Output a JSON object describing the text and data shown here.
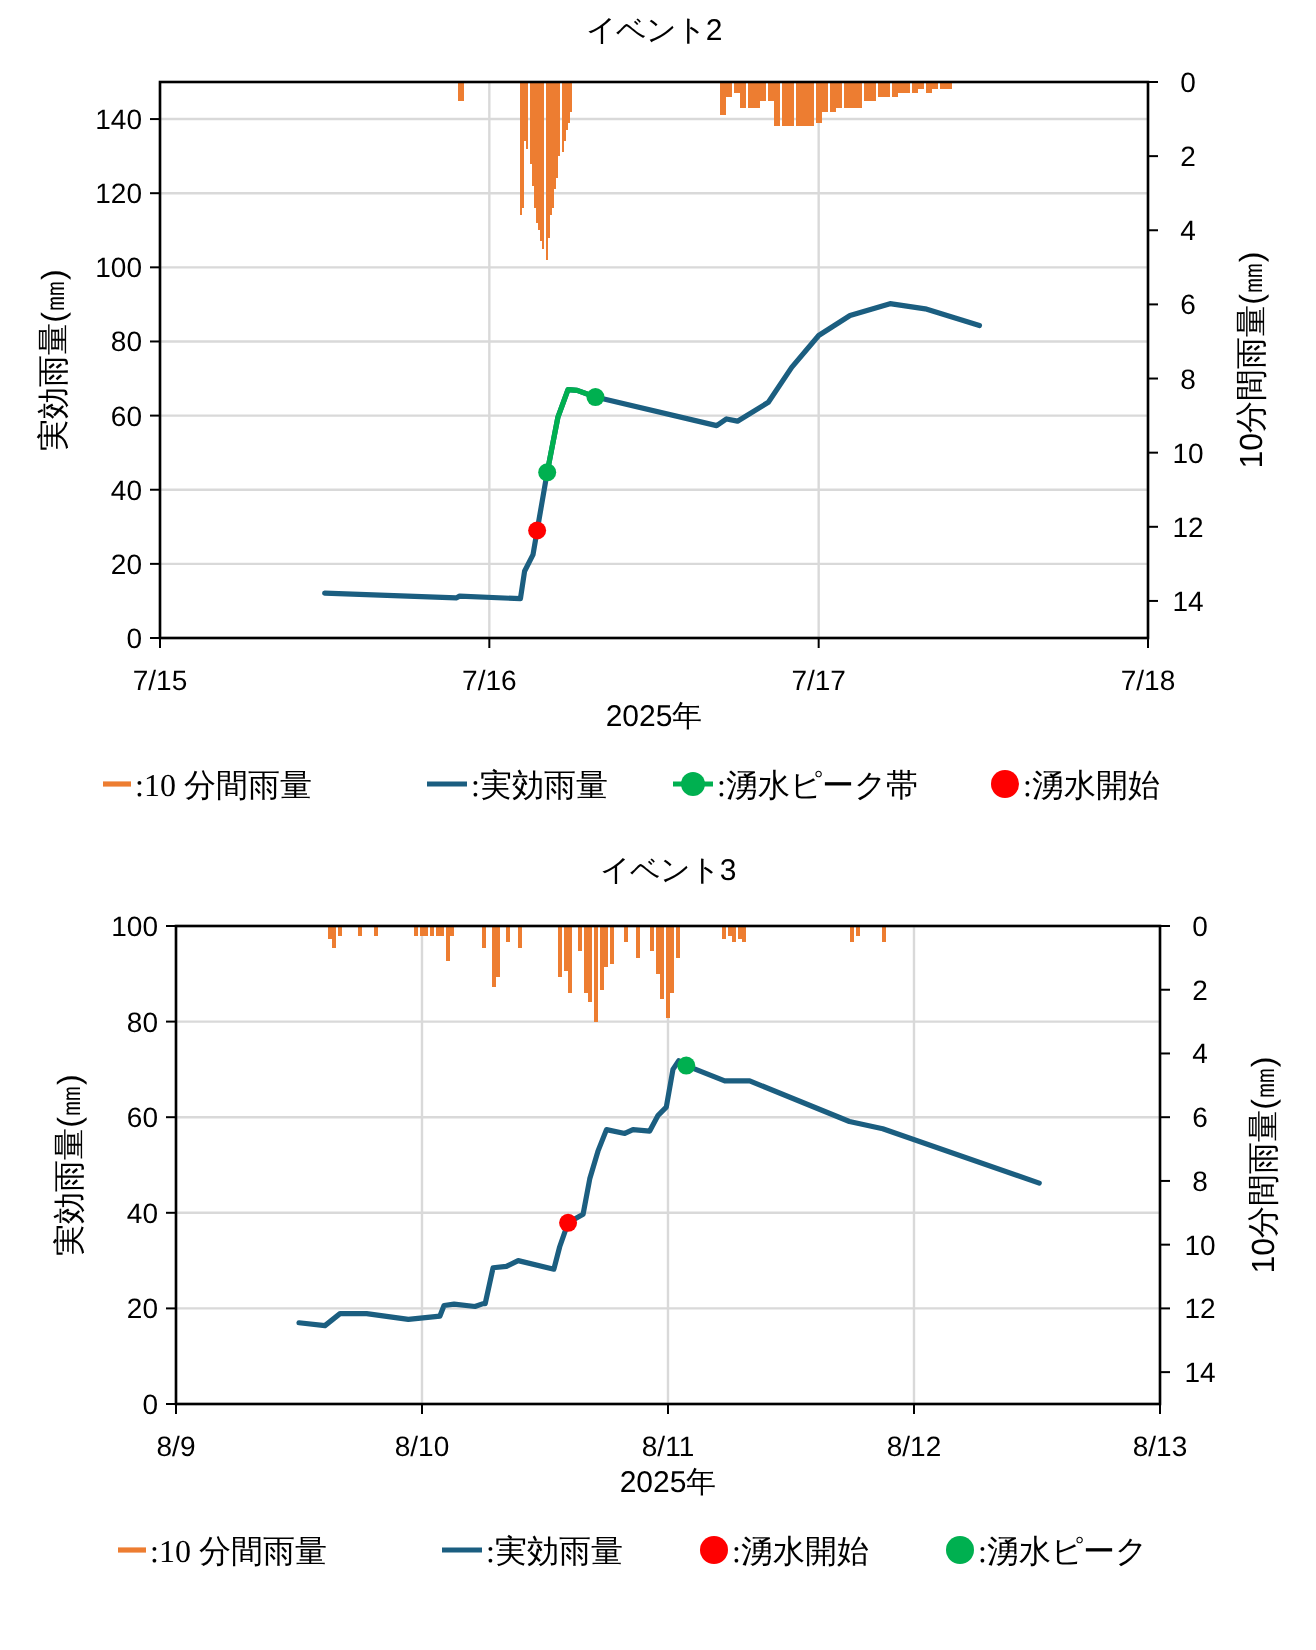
{
  "chart_data": [
    {
      "type": "line",
      "title": "イベント2",
      "xlabel": "2025年",
      "ylabel": "実効雨量(㎜)",
      "y2label": "10分間雨量(㎜)",
      "xlim": [
        "2025-07-15",
        "2025-07-18"
      ],
      "xticks": [
        {
          "value": "2025-07-15",
          "label": "7/15"
        },
        {
          "value": "2025-07-16",
          "label": "7/16"
        },
        {
          "value": "2025-07-17",
          "label": "7/17"
        },
        {
          "value": "2025-07-18",
          "label": "7/18"
        }
      ],
      "ylim": [
        0,
        150
      ],
      "yticks": [
        0,
        20,
        40,
        60,
        80,
        100,
        120,
        140
      ],
      "y2lim": [
        15,
        0
      ],
      "y2ticks": [
        0,
        2,
        4,
        6,
        8,
        10,
        12,
        14
      ],
      "grid": true,
      "legend": "bottom",
      "series": [
        {
          "name": ":10 分間雨量",
          "type": "bar",
          "axis": "y2",
          "color": "#ed7d31",
          "x": [
            "2025-07-15T22:00",
            "2025-07-16T02:20",
            "2025-07-16T02:30",
            "2025-07-16T02:40",
            "2025-07-16T02:50",
            "2025-07-16T03:00",
            "2025-07-16T03:10",
            "2025-07-16T03:20",
            "2025-07-16T03:30",
            "2025-07-16T03:40",
            "2025-07-16T03:50",
            "2025-07-16T04:00",
            "2025-07-16T04:10",
            "2025-07-16T04:20",
            "2025-07-16T04:30",
            "2025-07-16T04:40",
            "2025-07-16T04:50",
            "2025-07-16T05:00",
            "2025-07-16T05:10",
            "2025-07-16T05:20",
            "2025-07-16T05:30",
            "2025-07-16T05:40",
            "2025-07-16T05:50",
            "2025-07-16T06:00",
            "2025-07-16T17:00",
            "2025-07-16T17:30",
            "2025-07-16T18:00",
            "2025-07-16T18:30",
            "2025-07-16T19:00",
            "2025-07-16T19:30",
            "2025-07-16T20:00",
            "2025-07-16T20:30",
            "2025-07-16T21:00",
            "2025-07-16T21:30",
            "2025-07-16T22:00",
            "2025-07-16T22:30",
            "2025-07-16T23:00",
            "2025-07-16T23:30",
            "2025-07-17T00:00",
            "2025-07-17T00:30",
            "2025-07-17T01:00",
            "2025-07-17T01:30",
            "2025-07-17T02:00",
            "2025-07-17T02:30",
            "2025-07-17T03:00",
            "2025-07-17T03:30",
            "2025-07-17T04:00",
            "2025-07-17T04:30",
            "2025-07-17T05:00",
            "2025-07-17T05:30",
            "2025-07-17T06:00",
            "2025-07-17T06:30",
            "2025-07-17T07:00",
            "2025-07-17T07:30",
            "2025-07-17T08:00",
            "2025-07-17T08:30",
            "2025-07-17T09:00",
            "2025-07-17T09:30"
          ],
          "values": [
            0.5,
            3.6,
            3.4,
            1.6,
            1.8,
            2.2,
            2.8,
            3.4,
            3.8,
            4.0,
            4.3,
            4.5,
            4.8,
            4.2,
            3.6,
            3.4,
            2.9,
            2.6,
            2.0,
            1.9,
            1.6,
            1.3,
            1.1,
            0.8,
            0.9,
            0.4,
            0.3,
            0.7,
            0.7,
            0.7,
            0.5,
            0.5,
            1.2,
            1.2,
            1.2,
            1.2,
            1.2,
            1.2,
            1.1,
            0.8,
            0.8,
            0.7,
            0.7,
            0.7,
            0.7,
            0.5,
            0.5,
            0.4,
            0.4,
            0.4,
            0.3,
            0.3,
            0.3,
            0.2,
            0.3,
            0.2,
            0.2,
            0.2
          ]
        },
        {
          "name": ":実効雨量",
          "color": "#1b5e80",
          "x": [
            "2025-07-15T12:00",
            "2025-07-15T21:35",
            "2025-07-15T21:50",
            "2025-07-16T02:16",
            "2025-07-16T02:34",
            "2025-07-16T03:11",
            "2025-07-16T03:29",
            "2025-07-16T04:13",
            "2025-07-16T05:00",
            "2025-07-16T05:44",
            "2025-07-16T06:24",
            "2025-07-16T07:44",
            "2025-07-16T16:34",
            "2025-07-16T17:17",
            "2025-07-16T18:05",
            "2025-07-16T20:20",
            "2025-07-16T22:02",
            "2025-07-17T00:00",
            "2025-07-17T02:17",
            "2025-07-17T05:12",
            "2025-07-17T07:46",
            "2025-07-17T11:43"
          ],
          "values": [
            12.1,
            10.8,
            11.3,
            10.6,
            18,
            22.5,
            29,
            44.7,
            59.6,
            67,
            66.8,
            65,
            57.3,
            59.1,
            58.5,
            63.6,
            73,
            81.6,
            87,
            90.2,
            88.8,
            84.3
          ]
        },
        {
          "name": ":湧水ピーク帯",
          "color": "#00b050",
          "x": [
            "2025-07-16T04:13",
            "2025-07-16T05:00",
            "2025-07-16T05:44",
            "2025-07-16T06:24",
            "2025-07-16T07:44"
          ],
          "values": [
            44.7,
            59.6,
            67,
            66.8,
            65
          ]
        },
        {
          "type": "scatter",
          "color": "#00b050",
          "x": [
            "2025-07-16T04:13",
            "2025-07-16T07:44"
          ],
          "values": [
            44.7,
            65
          ]
        },
        {
          "name": ":湧水開始",
          "type": "scatter",
          "color": "#ff0000",
          "x": [
            "2025-07-16T03:29"
          ],
          "values": [
            29
          ]
        }
      ]
    },
    {
      "type": "line",
      "title": "イベント3",
      "xlabel": "2025年",
      "ylabel": "実効雨量(㎜)",
      "y2label": "10分間雨量(㎜)",
      "xlim": [
        "2025-08-09",
        "2025-08-13"
      ],
      "xticks": [
        {
          "value": "2025-08-09",
          "label": "8/9"
        },
        {
          "value": "2025-08-10",
          "label": "8/10"
        },
        {
          "value": "2025-08-11",
          "label": "8/11"
        },
        {
          "value": "2025-08-12",
          "label": "8/12"
        },
        {
          "value": "2025-08-13",
          "label": "8/13"
        }
      ],
      "ylim": [
        0,
        100
      ],
      "yticks": [
        0,
        20,
        40,
        60,
        80,
        100
      ],
      "y2lim": [
        15,
        0
      ],
      "y2ticks": [
        0,
        2,
        4,
        6,
        8,
        10,
        12,
        14
      ],
      "grid": true,
      "legend": "bottom",
      "series": [
        {
          "name": ":10 分間雨量",
          "type": "bar",
          "axis": "y2",
          "color": "#ed7d31",
          "x": [
            "2025-08-09T15:00",
            "2025-08-09T15:30",
            "2025-08-09T16:00",
            "2025-08-09T18:00",
            "2025-08-09T19:30",
            "2025-08-09T23:30",
            "2025-08-10T00:00",
            "2025-08-10T00:30",
            "2025-08-10T01:00",
            "2025-08-10T01:30",
            "2025-08-10T02:00",
            "2025-08-10T02:30",
            "2025-08-10T03:00",
            "2025-08-10T06:00",
            "2025-08-10T07:00",
            "2025-08-10T07:30",
            "2025-08-10T08:30",
            "2025-08-10T09:30",
            "2025-08-10T13:30",
            "2025-08-10T14:00",
            "2025-08-10T14:30",
            "2025-08-10T15:30",
            "2025-08-10T16:00",
            "2025-08-10T16:30",
            "2025-08-10T17:00",
            "2025-08-10T17:30",
            "2025-08-10T18:00",
            "2025-08-10T18:30",
            "2025-08-10T20:00",
            "2025-08-10T21:00",
            "2025-08-10T22:30",
            "2025-08-10T23:00",
            "2025-08-10T23:30",
            "2025-08-11T00:00",
            "2025-08-11T00:30",
            "2025-08-11T01:00",
            "2025-08-11T05:30",
            "2025-08-11T06:00",
            "2025-08-11T06:30",
            "2025-08-11T07:00",
            "2025-08-11T07:30",
            "2025-08-11T18:00",
            "2025-08-11T18:30",
            "2025-08-11T21:00"
          ],
          "values": [
            0.4,
            0.7,
            0.3,
            0.3,
            0.3,
            0.3,
            0.3,
            0.3,
            0.3,
            0.3,
            0.3,
            1.1,
            0.3,
            0.7,
            1.9,
            1.6,
            0.5,
            0.7,
            1.6,
            1.4,
            2.1,
            0.8,
            2.1,
            2.4,
            3.0,
            2.0,
            1.3,
            1.2,
            0.5,
            1.0,
            0.8,
            1.5,
            2.3,
            2.9,
            2.1,
            1.0,
            0.4,
            0.3,
            0.5,
            0.4,
            0.5,
            0.5,
            0.3,
            0.5
          ]
        },
        {
          "name": ":実効雨量",
          "color": "#1b5e80",
          "x": [
            "2025-08-09T12:00",
            "2025-08-09T14:32",
            "2025-08-09T16:00",
            "2025-08-09T18:36",
            "2025-08-09T22:40",
            "2025-08-10T01:45",
            "2025-08-10T02:09",
            "2025-08-10T03:08",
            "2025-08-10T05:10",
            "2025-08-10T05:58",
            "2025-08-10T06:10",
            "2025-08-10T06:56",
            "2025-08-10T08:14",
            "2025-08-10T09:23",
            "2025-08-10T12:52",
            "2025-08-10T13:26",
            "2025-08-10T14:15",
            "2025-08-10T15:43",
            "2025-08-10T16:22",
            "2025-08-10T17:10",
            "2025-08-10T18:00",
            "2025-08-10T19:47",
            "2025-08-10T20:35",
            "2025-08-10T22:13",
            "2025-08-10T23:02",
            "2025-08-10T23:50",
            "2025-08-11T00:29",
            "2025-08-11T01:03",
            "2025-08-11T01:47",
            "2025-08-11T05:32",
            "2025-08-11T07:58",
            "2025-08-11T17:42",
            "2025-08-11T20:57",
            "2025-08-12T12:13"
          ],
          "values": [
            17.0,
            16.4,
            18.9,
            18.9,
            17.7,
            18.4,
            20.6,
            20.9,
            20.4,
            21.0,
            21.0,
            28.5,
            28.8,
            30.0,
            28.2,
            32.9,
            37.9,
            39.7,
            47.1,
            52.9,
            57.4,
            56.6,
            57.4,
            57.1,
            60.4,
            62.1,
            70.0,
            71.8,
            70.8,
            67.6,
            67.6,
            59.1,
            57.6,
            46.2
          ]
        },
        {
          "name": ":湧水開始",
          "type": "scatter",
          "color": "#ff0000",
          "x": [
            "2025-08-10T14:15"
          ],
          "values": [
            37.9
          ]
        },
        {
          "name": ":湧水ピーク",
          "type": "scatter",
          "color": "#00b050",
          "x": [
            "2025-08-11T01:47"
          ],
          "values": [
            70.8
          ]
        }
      ]
    }
  ]
}
